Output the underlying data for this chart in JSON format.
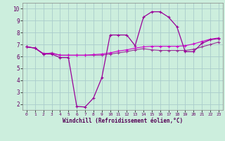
{
  "xlabel": "Windchill (Refroidissement éolien,°C)",
  "xlim": [
    -0.5,
    23.5
  ],
  "ylim": [
    1.5,
    10.5
  ],
  "yticks": [
    2,
    3,
    4,
    5,
    6,
    7,
    8,
    9,
    10
  ],
  "xticks": [
    0,
    1,
    2,
    3,
    4,
    5,
    6,
    7,
    8,
    9,
    10,
    11,
    12,
    13,
    14,
    15,
    16,
    17,
    18,
    19,
    20,
    21,
    22,
    23
  ],
  "background_color": "#cceedd",
  "grid_color": "#aacccc",
  "line1_color": "#990099",
  "line2_color": "#cc00cc",
  "line3_color": "#993399",
  "windchill_x": [
    0,
    1,
    2,
    3,
    4,
    5,
    6,
    7,
    8,
    9,
    10,
    11,
    12,
    13,
    14,
    15,
    16,
    17,
    18,
    19,
    20,
    21,
    22,
    23
  ],
  "windchill_y": [
    6.8,
    6.7,
    6.2,
    6.2,
    5.9,
    5.9,
    1.8,
    1.75,
    2.5,
    4.2,
    7.8,
    7.8,
    7.8,
    6.9,
    9.3,
    9.75,
    9.75,
    9.3,
    8.5,
    6.4,
    6.4,
    7.1,
    7.4,
    7.5
  ],
  "line2_x": [
    0,
    1,
    2,
    3,
    4,
    5,
    6,
    7,
    8,
    9,
    10,
    11,
    12,
    13,
    14,
    15,
    16,
    17,
    18,
    19,
    20,
    21,
    22,
    23
  ],
  "line2_y": [
    6.8,
    6.7,
    6.25,
    6.25,
    6.1,
    6.1,
    6.1,
    6.1,
    6.15,
    6.2,
    6.3,
    6.45,
    6.55,
    6.7,
    6.8,
    6.85,
    6.85,
    6.85,
    6.85,
    6.9,
    7.05,
    7.25,
    7.45,
    7.55
  ],
  "line3_x": [
    0,
    1,
    2,
    3,
    4,
    5,
    6,
    7,
    8,
    9,
    10,
    11,
    12,
    13,
    14,
    15,
    16,
    17,
    18,
    19,
    20,
    21,
    22,
    23
  ],
  "line3_y": [
    6.8,
    6.7,
    6.2,
    6.3,
    6.1,
    6.1,
    6.1,
    6.1,
    6.1,
    6.1,
    6.2,
    6.3,
    6.4,
    6.55,
    6.65,
    6.55,
    6.5,
    6.5,
    6.5,
    6.5,
    6.6,
    6.8,
    7.0,
    7.2
  ]
}
